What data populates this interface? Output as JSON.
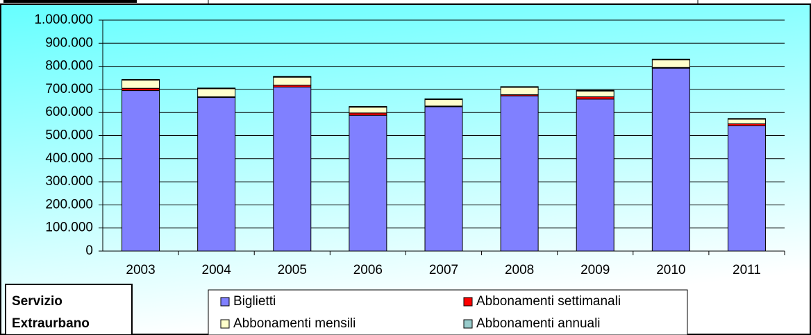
{
  "chart_data": {
    "type": "stacked_bar",
    "categories": [
      "2003",
      "2004",
      "2005",
      "2006",
      "2007",
      "2008",
      "2009",
      "2010",
      "2011"
    ],
    "series": [
      {
        "name": "Biglietti",
        "color": "#8080ff",
        "values": [
          695000,
          665000,
          710000,
          588000,
          625000,
          672000,
          658000,
          792000,
          543000
        ]
      },
      {
        "name": "Abbonamenti settimanali",
        "color": "#ff0000",
        "values": [
          10000,
          3000,
          8000,
          10000,
          3000,
          5000,
          10000,
          3000,
          8000
        ]
      },
      {
        "name": "Abbonamenti mensili",
        "color": "#ffffcc",
        "values": [
          35000,
          35000,
          35000,
          25000,
          28000,
          32000,
          25000,
          33000,
          20000
        ]
      },
      {
        "name": "Abbonamenti annuali",
        "color": "#99cccc",
        "values": [
          3000,
          3000,
          3000,
          3000,
          3000,
          3000,
          3000,
          3000,
          3000
        ]
      }
    ],
    "ylim": [
      0,
      1000000
    ],
    "yticks": [
      0,
      {
        "value": 100000,
        "label": "100.000"
      },
      {
        "value": 200000,
        "label": "200.000"
      },
      {
        "value": 300000,
        "label": "300.000"
      },
      {
        "value": 400000,
        "label": "400.000"
      },
      {
        "value": 500000,
        "label": "500.000"
      },
      {
        "value": 600000,
        "label": "600.000"
      },
      {
        "value": 700000,
        "label": "700.000"
      },
      {
        "value": 800000,
        "label": "800.000"
      },
      {
        "value": 900000,
        "label": "900.000"
      },
      {
        "value": 1000000,
        "label": "1.000.000"
      }
    ],
    "grid": true,
    "legend": "bottom",
    "annotation_lines": [
      "Servizio",
      "Extraurbano"
    ]
  }
}
